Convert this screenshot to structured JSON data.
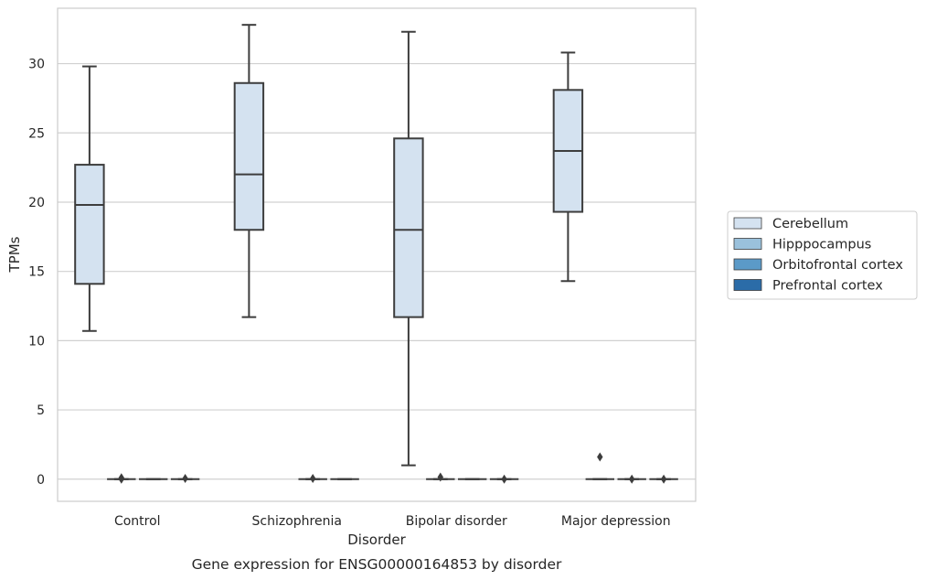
{
  "chart_data": {
    "type": "box",
    "title": "Gene expression for ENSG00000164853 by disorder",
    "xlabel": "Disorder",
    "ylabel": "TPMs",
    "ylim": [
      -1.6,
      34
    ],
    "yticks": [
      0,
      5,
      10,
      15,
      20,
      25,
      30
    ],
    "grid": "horizontal",
    "legend_position": "right",
    "categories": [
      "Control",
      "Schizophrenia",
      "Bipolar disorder",
      "Major depression"
    ],
    "series": [
      {
        "name": "Cerebellum",
        "color": "#d4e2f0",
        "boxes": [
          {
            "whislo": 10.7,
            "q1": 14.1,
            "med": 19.8,
            "q3": 22.7,
            "whishi": 29.8,
            "fliers": []
          },
          {
            "whislo": 11.7,
            "q1": 18.0,
            "med": 22.0,
            "q3": 28.6,
            "whishi": 32.8,
            "fliers": []
          },
          {
            "whislo": 1.0,
            "q1": 11.7,
            "med": 18.0,
            "q3": 24.6,
            "whishi": 32.3,
            "fliers": []
          },
          {
            "whislo": 14.3,
            "q1": 19.3,
            "med": 23.7,
            "q3": 28.1,
            "whishi": 30.8,
            "fliers": []
          }
        ]
      },
      {
        "name": "Hipppocampus",
        "color": "#9ac1dc",
        "boxes": [
          {
            "whislo": 0,
            "q1": 0,
            "med": 0,
            "q3": 0,
            "whishi": 0,
            "fliers": [
              0.1,
              0.0
            ]
          },
          null,
          {
            "whislo": 0,
            "q1": 0,
            "med": 0,
            "q3": 0,
            "whishi": 0,
            "fliers": [
              0.15
            ]
          },
          {
            "whislo": 0,
            "q1": 0,
            "med": 0,
            "q3": 0,
            "whishi": 0,
            "fliers": [
              1.6
            ]
          }
        ]
      },
      {
        "name": "Orbitofrontal cortex",
        "color": "#5b9ac8",
        "boxes": [
          {
            "whislo": 0,
            "q1": 0,
            "med": 0,
            "q3": 0,
            "whishi": 0,
            "fliers": []
          },
          {
            "whislo": 0,
            "q1": 0,
            "med": 0,
            "q3": 0,
            "whishi": 0,
            "fliers": [
              0.05
            ]
          },
          {
            "whislo": 0,
            "q1": 0,
            "med": 0,
            "q3": 0,
            "whishi": 0,
            "fliers": []
          },
          {
            "whislo": 0,
            "q1": 0,
            "med": 0,
            "q3": 0,
            "whishi": 0,
            "fliers": [
              0.0
            ]
          }
        ]
      },
      {
        "name": "Prefrontal cortex",
        "color": "#2b6ca8",
        "boxes": [
          {
            "whislo": 0,
            "q1": 0,
            "med": 0,
            "q3": 0,
            "whishi": 0,
            "fliers": [
              0.05
            ]
          },
          {
            "whislo": 0,
            "q1": 0,
            "med": 0,
            "q3": 0,
            "whishi": 0,
            "fliers": []
          },
          {
            "whislo": 0,
            "q1": 0,
            "med": 0,
            "q3": 0,
            "whishi": 0,
            "fliers": [
              0.0
            ]
          },
          {
            "whislo": 0,
            "q1": 0,
            "med": 0,
            "q3": 0,
            "whishi": 0,
            "fliers": [
              0.0
            ]
          }
        ]
      }
    ]
  }
}
